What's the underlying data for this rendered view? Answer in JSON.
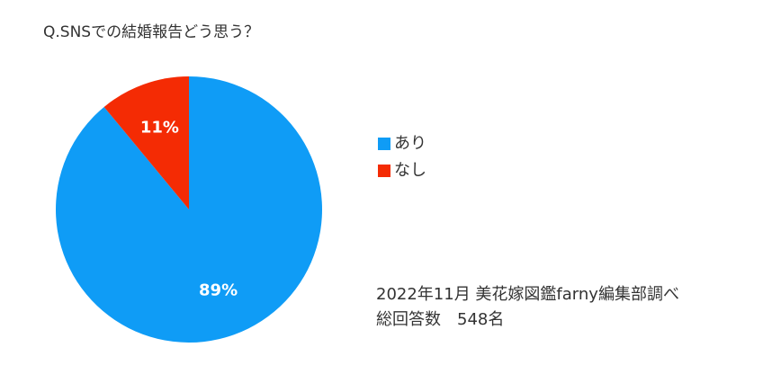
{
  "chart_data": {
    "type": "pie",
    "title": "Q.SNSでの結婚報告どう思う？",
    "categories": [
      "あり",
      "なし"
    ],
    "values": [
      89,
      11
    ],
    "value_labels": [
      "89%",
      "11%"
    ],
    "colors": [
      "#0f9cf6",
      "#f42b04"
    ],
    "annotations": [
      "2022年11月 美花嫁図鑑farny編集部調べ",
      "総回答数　548名"
    ]
  }
}
